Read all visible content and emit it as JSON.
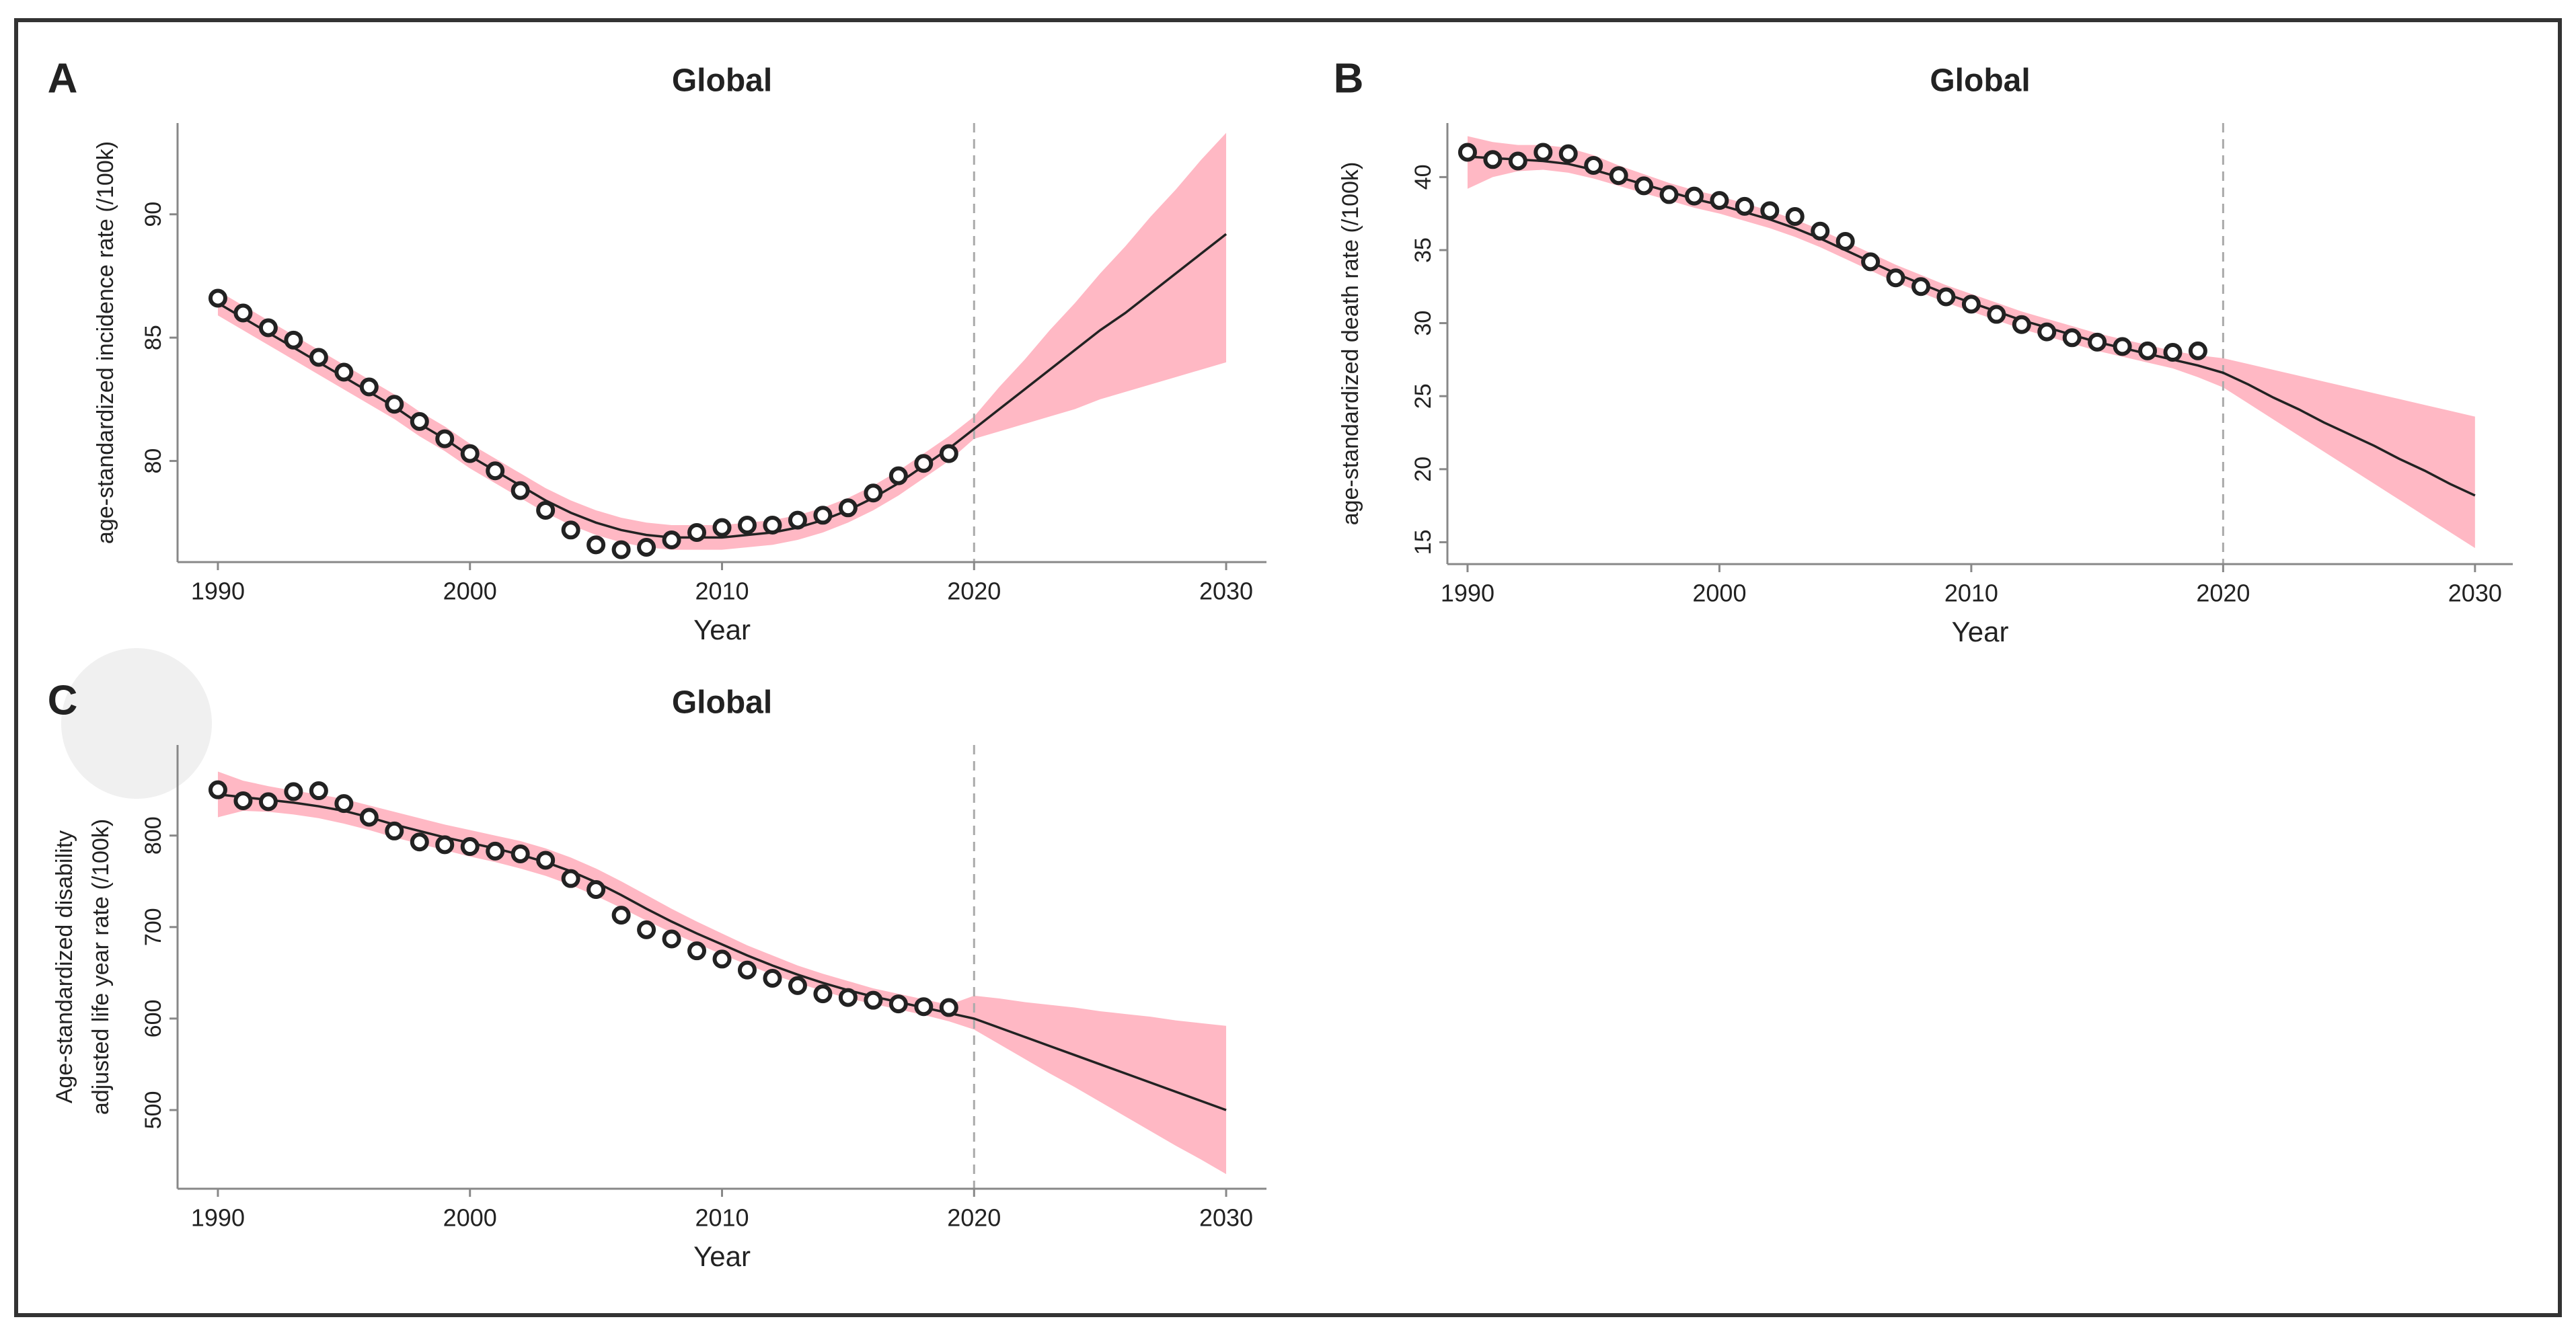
{
  "chart_data": [
    {
      "type": "line",
      "panel": "A",
      "title": "Global",
      "xlabel": "Year",
      "ylabel": "age-standardized incidence rate (/100k)",
      "xlim": [
        1988.4,
        2031.6
      ],
      "xticks": [
        1990,
        2000,
        2010,
        2020,
        2030
      ],
      "ylim": [
        75.9,
        93.7
      ],
      "yticks": [
        80,
        85,
        90
      ],
      "vline": 2020,
      "line_color": "#222222",
      "band_color": "#ffb8c4",
      "point_color": "#222222",
      "x": [
        1990,
        1991,
        1992,
        1993,
        1994,
        1995,
        1996,
        1997,
        1998,
        1999,
        2000,
        2001,
        2002,
        2003,
        2004,
        2005,
        2006,
        2007,
        2008,
        2009,
        2010,
        2011,
        2012,
        2013,
        2014,
        2015,
        2016,
        2017,
        2018,
        2019,
        2020,
        2021,
        2022,
        2023,
        2024,
        2025,
        2026,
        2027,
        2028,
        2029,
        2030
      ],
      "fitted": [
        86.4,
        85.8,
        85.2,
        84.6,
        84.0,
        83.4,
        82.8,
        82.2,
        81.5,
        80.9,
        80.2,
        79.6,
        79.0,
        78.4,
        77.9,
        77.5,
        77.2,
        77.0,
        76.9,
        76.9,
        76.9,
        77.0,
        77.1,
        77.3,
        77.6,
        78.0,
        78.5,
        79.1,
        79.8,
        80.5,
        81.3,
        82.1,
        82.9,
        83.7,
        84.5,
        85.3,
        86.0,
        86.8,
        87.6,
        88.4,
        89.2
      ],
      "lower": [
        85.9,
        85.3,
        84.7,
        84.1,
        83.5,
        82.9,
        82.3,
        81.7,
        81.0,
        80.4,
        79.7,
        79.1,
        78.5,
        77.9,
        77.4,
        77.0,
        76.7,
        76.5,
        76.4,
        76.4,
        76.4,
        76.5,
        76.6,
        76.8,
        77.1,
        77.5,
        78.0,
        78.6,
        79.3,
        80.0,
        80.9,
        81.2,
        81.5,
        81.8,
        82.1,
        82.5,
        82.8,
        83.1,
        83.4,
        83.7,
        84.0
      ],
      "upper": [
        86.9,
        86.3,
        85.7,
        85.1,
        84.5,
        83.9,
        83.3,
        82.7,
        82.0,
        81.4,
        80.7,
        80.1,
        79.5,
        78.9,
        78.4,
        78.0,
        77.7,
        77.5,
        77.4,
        77.4,
        77.4,
        77.5,
        77.6,
        77.8,
        78.1,
        78.5,
        79.0,
        79.6,
        80.3,
        81.0,
        81.8,
        83.0,
        84.1,
        85.3,
        86.4,
        87.6,
        88.7,
        89.9,
        91.0,
        92.2,
        93.3
      ],
      "observed": [
        86.6,
        86.0,
        85.4,
        84.9,
        84.2,
        83.6,
        83.0,
        82.3,
        81.6,
        80.9,
        80.3,
        79.6,
        78.8,
        78.0,
        77.2,
        76.6,
        76.4,
        76.5,
        76.8,
        77.1,
        77.3,
        77.4,
        77.4,
        77.6,
        77.8,
        78.1,
        78.7,
        79.4,
        79.9,
        80.3,
        null,
        null,
        null,
        null,
        null,
        null,
        null,
        null,
        null,
        null,
        null
      ]
    },
    {
      "type": "line",
      "panel": "B",
      "title": "Global",
      "xlabel": "Year",
      "ylabel": "age-standardized death rate  (/100k)",
      "xlim": [
        1989.2,
        2031.5
      ],
      "xticks": [
        1990,
        2000,
        2010,
        2020,
        2030
      ],
      "ylim": [
        13.5,
        43.7
      ],
      "yticks": [
        15,
        20,
        25,
        30,
        35,
        40
      ],
      "vline": 2020,
      "line_color": "#222222",
      "band_color": "#ffb8c4",
      "point_color": "#222222",
      "x": [
        1990,
        1991,
        1992,
        1993,
        1994,
        1995,
        1996,
        1997,
        1998,
        1999,
        2000,
        2001,
        2002,
        2003,
        2004,
        2005,
        2006,
        2007,
        2008,
        2009,
        2010,
        2011,
        2012,
        2013,
        2014,
        2015,
        2016,
        2017,
        2018,
        2019,
        2020,
        2021,
        2022,
        2023,
        2024,
        2025,
        2026,
        2027,
        2028,
        2029,
        2030
      ],
      "fitted": [
        41.4,
        41.3,
        41.2,
        41.1,
        40.9,
        40.5,
        40.0,
        39.5,
        39.0,
        38.5,
        38.1,
        37.6,
        37.1,
        36.5,
        35.8,
        35.0,
        34.2,
        33.4,
        32.7,
        32.0,
        31.4,
        30.8,
        30.2,
        29.7,
        29.2,
        28.7,
        28.3,
        27.9,
        27.5,
        27.1,
        26.6,
        25.8,
        24.9,
        24.1,
        23.2,
        22.4,
        21.6,
        20.7,
        19.9,
        19.0,
        18.2
      ],
      "lower": [
        39.2,
        40.0,
        40.4,
        40.5,
        40.3,
        39.9,
        39.4,
        38.9,
        38.4,
        37.9,
        37.5,
        37.0,
        36.5,
        35.9,
        35.2,
        34.4,
        33.6,
        32.8,
        32.1,
        31.4,
        30.8,
        30.2,
        29.6,
        29.1,
        28.6,
        28.1,
        27.7,
        27.3,
        26.9,
        26.3,
        25.6,
        24.5,
        23.4,
        22.3,
        21.2,
        20.1,
        19.0,
        17.9,
        16.8,
        15.7,
        14.6
      ],
      "upper": [
        42.8,
        42.4,
        42.2,
        42.2,
        42.0,
        41.5,
        40.8,
        40.2,
        39.6,
        39.1,
        38.7,
        38.2,
        37.7,
        37.1,
        36.4,
        35.6,
        34.8,
        34.0,
        33.3,
        32.6,
        32.0,
        31.4,
        30.8,
        30.3,
        29.8,
        29.3,
        28.9,
        28.5,
        28.1,
        27.8,
        27.6,
        27.2,
        26.8,
        26.4,
        26.0,
        25.6,
        25.2,
        24.8,
        24.4,
        24.0,
        23.6
      ],
      "observed": [
        41.7,
        41.2,
        41.1,
        41.7,
        41.6,
        40.8,
        40.1,
        39.4,
        38.8,
        38.7,
        38.4,
        38.0,
        37.7,
        37.3,
        36.3,
        35.6,
        34.2,
        33.1,
        32.5,
        31.8,
        31.3,
        30.6,
        29.9,
        29.4,
        29.0,
        28.7,
        28.4,
        28.1,
        28.0,
        28.1,
        null,
        null,
        null,
        null,
        null,
        null,
        null,
        null,
        null,
        null,
        null
      ]
    },
    {
      "type": "line",
      "panel": "C",
      "title": "Global",
      "xlabel": "Year",
      "ylabel": [
        "Age-standardized  disability",
        "adjusted life year rate  (/100k)"
      ],
      "xlim": [
        1988.4,
        2031.6
      ],
      "xticks": [
        1990,
        2000,
        2010,
        2020,
        2030
      ],
      "ylim": [
        414,
        899
      ],
      "yticks": [
        500,
        600,
        700,
        800
      ],
      "vline": 2020,
      "line_color": "#222222",
      "band_color": "#ffb8c4",
      "point_color": "#222222",
      "x": [
        1990,
        1991,
        1992,
        1993,
        1994,
        1995,
        1996,
        1997,
        1998,
        1999,
        2000,
        2001,
        2002,
        2003,
        2004,
        2005,
        2006,
        2007,
        2008,
        2009,
        2010,
        2011,
        2012,
        2013,
        2014,
        2015,
        2016,
        2017,
        2018,
        2019,
        2020,
        2021,
        2022,
        2023,
        2024,
        2025,
        2026,
        2027,
        2028,
        2029,
        2030
      ],
      "fitted": [
        845,
        842,
        839,
        836,
        832,
        827,
        820,
        812,
        805,
        798,
        792,
        786,
        779,
        771,
        761,
        749,
        735,
        720,
        706,
        693,
        681,
        669,
        658,
        648,
        639,
        631,
        624,
        618,
        612,
        606,
        600,
        590,
        580,
        570,
        560,
        550,
        540,
        530,
        520,
        510,
        500
      ],
      "lower": [
        820,
        827,
        826,
        823,
        819,
        813,
        806,
        798,
        791,
        784,
        777,
        771,
        764,
        756,
        746,
        734,
        721,
        707,
        694,
        682,
        670,
        659,
        648,
        639,
        630,
        622,
        616,
        610,
        604,
        597,
        588,
        572,
        556,
        540,
        525,
        509,
        493,
        477,
        461,
        446,
        430
      ],
      "upper": [
        870,
        860,
        854,
        849,
        845,
        840,
        833,
        826,
        819,
        812,
        806,
        800,
        794,
        786,
        776,
        764,
        750,
        735,
        720,
        706,
        693,
        680,
        669,
        658,
        649,
        641,
        633,
        627,
        621,
        615,
        625,
        622,
        618,
        615,
        612,
        608,
        605,
        602,
        598,
        595,
        592
      ],
      "observed": [
        850,
        838,
        837,
        848,
        849,
        835,
        820,
        805,
        793,
        790,
        788,
        783,
        780,
        773,
        753,
        741,
        713,
        697,
        687,
        674,
        665,
        653,
        644,
        636,
        627,
        623,
        620,
        616,
        613,
        612,
        null,
        null,
        null,
        null,
        null,
        null,
        null,
        null,
        null,
        null,
        null
      ]
    }
  ]
}
